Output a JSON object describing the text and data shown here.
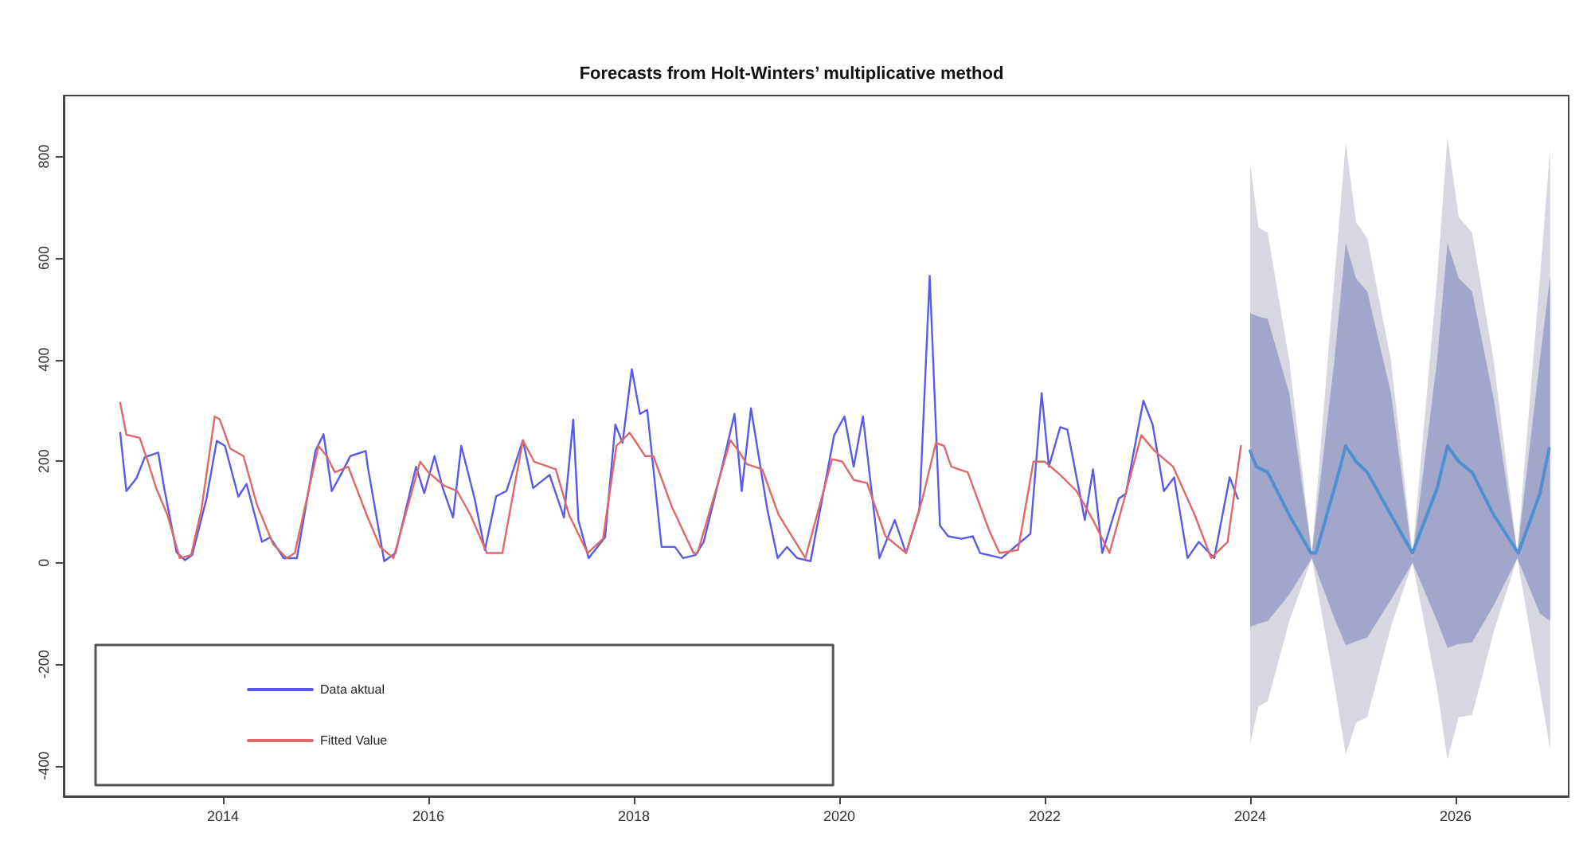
{
  "chart_data": {
    "type": "line",
    "title": "Forecasts from Holt-Winters’ multiplicative method",
    "xlim": [
      2012.45,
      2027.1
    ],
    "ylim": [
      -460,
      920
    ],
    "xticks": [
      2014,
      2016,
      2018,
      2020,
      2022,
      2024,
      2026
    ],
    "yticks": [
      -400,
      -200,
      0,
      200,
      400,
      600,
      800
    ],
    "grid": false,
    "legend": "bottom left",
    "marker": "none",
    "line_style": "solid",
    "series": [
      {
        "name": null,
        "type": "area",
        "color": "#d6d7e0",
        "x": [
          2024,
          2024.08,
          2024.17,
          2024.38,
          2024.6,
          2024.82,
          2024.93,
          2025.03,
          2025.14,
          2025.37,
          2025.58,
          2025.82,
          2025.92,
          2026.03,
          2026.16,
          2026.37,
          2026.6,
          2026.82,
          2026.92
        ],
        "values": [
          null,
          null,
          null,
          null,
          null,
          null,
          null,
          null,
          null,
          null,
          null,
          null,
          null,
          null,
          null,
          null,
          null,
          null,
          null
        ],
        "upper": [
          786,
          660,
          650,
          398,
          19,
          560,
          827,
          671,
          639,
          398,
          19,
          560,
          838,
          681,
          650,
          398,
          19,
          560,
          817
        ],
        "lower": [
          -357,
          -283,
          -273,
          -115,
          9,
          -240,
          -378,
          -315,
          -304,
          -126,
          0,
          -250,
          -388,
          -304,
          -300,
          -136,
          9,
          -250,
          -367
        ]
      },
      {
        "name": null,
        "type": "area",
        "color": "#a2a6cb",
        "x": [
          2024,
          2024.08,
          2024.17,
          2024.38,
          2024.6,
          2024.82,
          2024.93,
          2025.03,
          2025.14,
          2025.37,
          2025.58,
          2025.82,
          2025.92,
          2026.03,
          2026.16,
          2026.37,
          2026.6,
          2026.82,
          2026.92
        ],
        "values": [
          null,
          null,
          null,
          null,
          null,
          null,
          null,
          null,
          null,
          null,
          null,
          null,
          null,
          null,
          null,
          null,
          null,
          null,
          null
        ],
        "upper": [
          491,
          485,
          480,
          334,
          19,
          400,
          629,
          560,
          534,
          334,
          9,
          400,
          629,
          560,
          534,
          323,
          19,
          400,
          565
        ],
        "lower": [
          -126,
          -120,
          -115,
          -63,
          9,
          -110,
          -163,
          -155,
          -147,
          -73,
          0,
          -115,
          -168,
          -160,
          -157,
          -84,
          9,
          -100,
          -115
        ]
      },
      {
        "name": null,
        "type": "line",
        "color": "#4f90d0",
        "x": [
          2024,
          2024.06,
          2024.17,
          2024.38,
          2024.59,
          2024.64,
          2024.82,
          2024.93,
          2025.03,
          2025.14,
          2025.37,
          2025.58,
          2025.82,
          2025.92,
          2026.03,
          2026.16,
          2026.37,
          2026.61,
          2026.82,
          2026.91
        ],
        "values": [
          220,
          189,
          178,
          94,
          19,
          19,
          147,
          230,
          199,
          178,
          94,
          19,
          147,
          230,
          199,
          178,
          94,
          19,
          136,
          225
        ]
      },
      {
        "name": "Data aktual",
        "type": "line",
        "color": "#5a5ae6",
        "x": [
          2013,
          2013.06,
          2013.16,
          2013.24,
          2013.37,
          2013.43,
          2013.55,
          2013.63,
          2013.7,
          2013.84,
          2013.94,
          2014.02,
          2014.15,
          2014.23,
          2014.38,
          2014.46,
          2014.59,
          2014.72,
          2014.9,
          2014.98,
          2015.06,
          2015.16,
          2015.24,
          2015.39,
          2015.41,
          2015.57,
          2015.68,
          2015.88,
          2015.96,
          2016.06,
          2016.14,
          2016.24,
          2016.32,
          2016.45,
          2016.55,
          2016.66,
          2016.76,
          2016.92,
          2017.02,
          2017.18,
          2017.32,
          2017.41,
          2017.46,
          2017.56,
          2017.72,
          2017.82,
          2017.89,
          2017.98,
          2018.06,
          2018.13,
          2018.27,
          2018.4,
          2018.48,
          2018.6,
          2018.68,
          2018.86,
          2018.98,
          2019.05,
          2019.14,
          2019.3,
          2019.4,
          2019.49,
          2019.59,
          2019.72,
          2019.95,
          2020.05,
          2020.14,
          2020.23,
          2020.39,
          2020.54,
          2020.65,
          2020.78,
          2020.88,
          2020.98,
          2021.06,
          2021.19,
          2021.3,
          2021.37,
          2021.58,
          2021.86,
          2021.97,
          2022.04,
          2022.15,
          2022.22,
          2022.39,
          2022.47,
          2022.56,
          2022.72,
          2022.79,
          2022.96,
          2023.05,
          2023.16,
          2023.26,
          2023.39,
          2023.5,
          2023.65,
          2023.8,
          2023.88
        ],
        "values": [
          256,
          141,
          167,
          208,
          217,
          145,
          20,
          5,
          15,
          126,
          240,
          230,
          130,
          155,
          41,
          50,
          9,
          9,
          220,
          253,
          141,
          178,
          210,
          220,
          189,
          3,
          19,
          189,
          137,
          210,
          147,
          89,
          230,
          126,
          25,
          131,
          141,
          241,
          147,
          173,
          89,
          282,
          84,
          9,
          50,
          272,
          236,
          381,
          293,
          301,
          31,
          31,
          9,
          15,
          41,
          189,
          293,
          141,
          304,
          104,
          9,
          31,
          9,
          3,
          251,
          288,
          189,
          288,
          9,
          84,
          19,
          104,
          565,
          73,
          52,
          47,
          52,
          19,
          9,
          57,
          334,
          189,
          267,
          262,
          84,
          184,
          19,
          126,
          136,
          319,
          272,
          141,
          168,
          9,
          41,
          9,
          168,
          126
        ]
      },
      {
        "name": "Fitted Value",
        "type": "line",
        "color": "#e06868",
        "x": [
          2013,
          2013.06,
          2013.19,
          2013.27,
          2013.35,
          2013.46,
          2013.58,
          2013.69,
          2013.79,
          2013.92,
          2013.97,
          2014.07,
          2014.2,
          2014.33,
          2014.49,
          2014.62,
          2014.7,
          2014.93,
          2015.01,
          2015.09,
          2015.22,
          2015.4,
          2015.53,
          2015.66,
          2015.92,
          2016,
          2016.15,
          2016.28,
          2016.41,
          2016.57,
          2016.72,
          2016.92,
          2017.03,
          2017.24,
          2017.37,
          2017.55,
          2017.7,
          2017.83,
          2017.96,
          2018.11,
          2018.19,
          2018.37,
          2018.58,
          2018.62,
          2018.94,
          2019.02,
          2019.1,
          2019.25,
          2019.41,
          2019.67,
          2019.93,
          2020.03,
          2020.14,
          2020.27,
          2020.45,
          2020.65,
          2020.81,
          2020.94,
          2021.02,
          2021.09,
          2021.25,
          2021.46,
          2021.56,
          2021.74,
          2021.89,
          2022,
          2022.15,
          2022.31,
          2022.47,
          2022.63,
          2022.76,
          2022.94,
          2023.07,
          2023.25,
          2023.46,
          2023.62,
          2023.78,
          2023.91
        ],
        "values": [
          315,
          252,
          246,
          199,
          147,
          94,
          9,
          15,
          104,
          288,
          282,
          225,
          210,
          115,
          36,
          9,
          19,
          230,
          210,
          178,
          189,
          94,
          31,
          9,
          199,
          178,
          152,
          141,
          94,
          19,
          19,
          241,
          199,
          184,
          94,
          19,
          47,
          230,
          256,
          210,
          210,
          110,
          19,
          19,
          241,
          220,
          194,
          184,
          94,
          9,
          204,
          199,
          163,
          157,
          52,
          19,
          126,
          236,
          230,
          189,
          178,
          63,
          19,
          25,
          199,
          199,
          173,
          141,
          84,
          19,
          115,
          251,
          220,
          189,
          94,
          9,
          41,
          230
        ]
      }
    ]
  }
}
